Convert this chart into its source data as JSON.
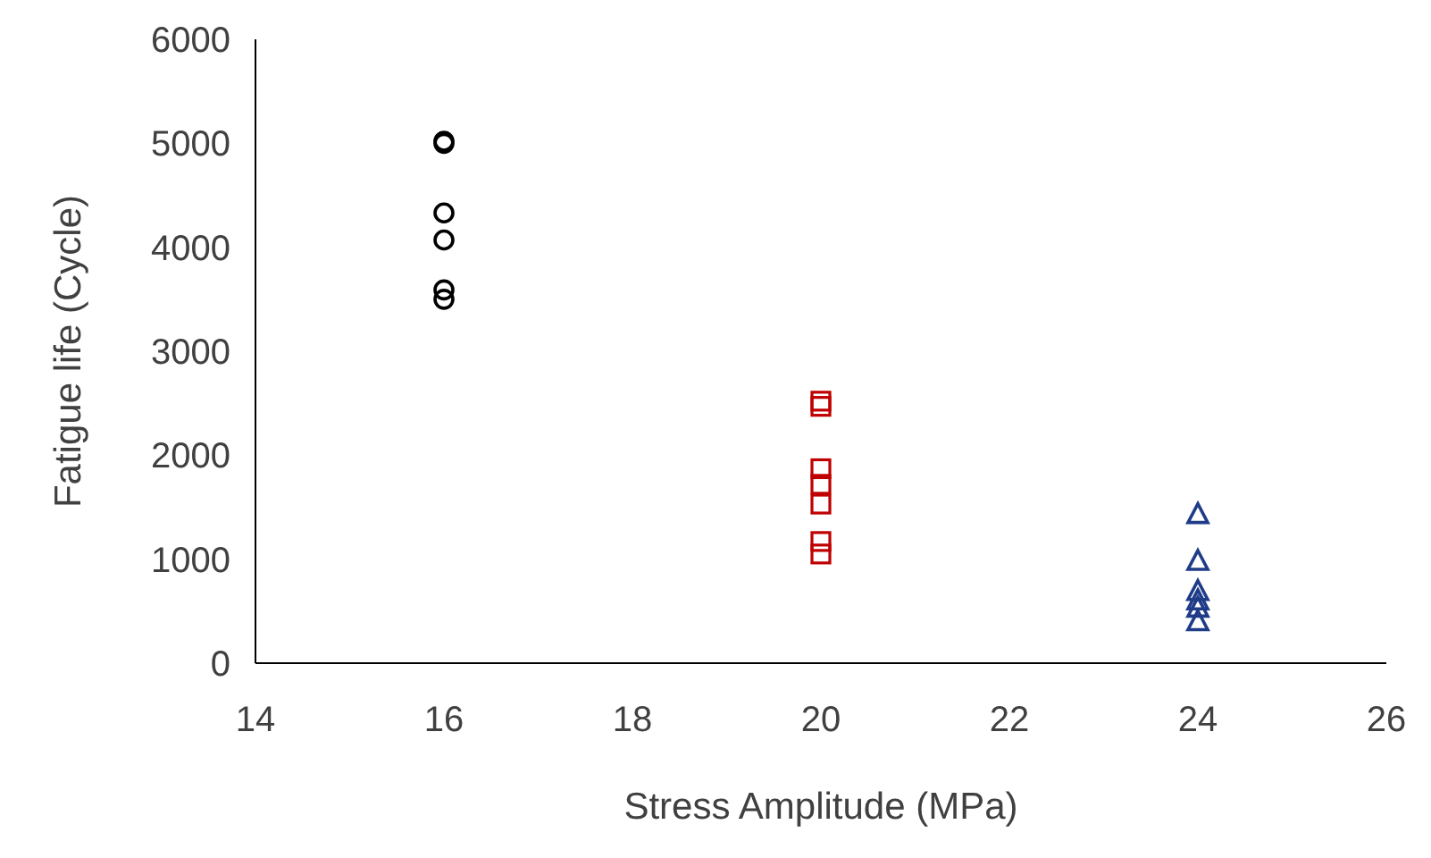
{
  "chart_data": {
    "type": "scatter",
    "xlabel": "Stress Amplitude (MPa)",
    "ylabel": "Fatigue life (Cycle)",
    "xlim": [
      14,
      26
    ],
    "xticks": [
      14,
      16,
      18,
      20,
      22,
      24,
      26
    ],
    "ylim": [
      0,
      6000
    ],
    "yticks": [
      0,
      1000,
      2000,
      3000,
      4000,
      5000,
      6000
    ],
    "grid": false,
    "series": [
      {
        "color": "#000000",
        "marker": "circle",
        "x": [
          16,
          16,
          16,
          16,
          16,
          16
        ],
        "values": [
          5000,
          5020,
          4330,
          4070,
          3590,
          3500
        ]
      },
      {
        "color": "#c00000",
        "marker": "square",
        "x": [
          20,
          20,
          20,
          20,
          20,
          20,
          20
        ],
        "values": [
          2520,
          2470,
          1870,
          1720,
          1530,
          1170,
          1050
        ]
      },
      {
        "color": "#1f3c88",
        "marker": "triangle",
        "x": [
          24,
          24,
          24,
          24,
          24,
          24
        ],
        "values": [
          1430,
          980,
          690,
          600,
          530,
          400
        ]
      }
    ]
  }
}
